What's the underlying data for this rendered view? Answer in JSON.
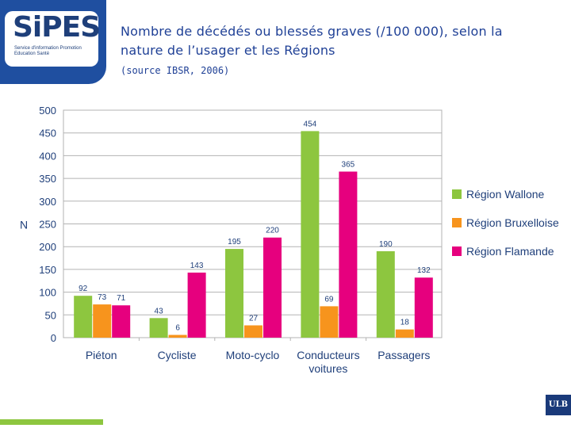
{
  "header": {
    "logo_text": "SiPES",
    "logo_subtitle": "Service d'information Promotion Education Santé",
    "title": "Nombre de décédés ou blessés graves (/100 000), selon la nature de l’usager et les Régions",
    "source": "(source IBSR, 2006)"
  },
  "footer": {
    "badge": "ULB"
  },
  "colors": {
    "wallone": "#8dc63f",
    "bruxelloise": "#f7941d",
    "flamande": "#e6007e",
    "brand": "#1f4096"
  },
  "chart_data": {
    "type": "bar",
    "title": "Nombre de décédés ou blessés graves (/100 000), selon la nature de l’usager et les Régions",
    "ylabel": "N",
    "xlabel": "",
    "ylim": [
      0,
      500
    ],
    "yticks": [
      0,
      50,
      100,
      150,
      200,
      250,
      300,
      350,
      400,
      450,
      500
    ],
    "grid": true,
    "legend": "right",
    "categories": [
      "Piéton",
      "Cycliste",
      "Moto-cyclo",
      "Conducteurs voitures",
      "Passagers"
    ],
    "category_lines": [
      [
        "Piéton"
      ],
      [
        "Cycliste"
      ],
      [
        "Moto-cyclo"
      ],
      [
        "Conducteurs",
        "voitures"
      ],
      [
        "Passagers"
      ]
    ],
    "series": [
      {
        "name": "Région Wallone",
        "color": "#8dc63f",
        "values": [
          92,
          43,
          195,
          454,
          190
        ]
      },
      {
        "name": "Région Bruxelloise",
        "color": "#f7941d",
        "values": [
          73,
          6,
          27,
          69,
          18
        ]
      },
      {
        "name": "Région Flamande",
        "color": "#e6007e",
        "values": [
          71,
          143,
          220,
          365,
          132
        ]
      }
    ]
  }
}
